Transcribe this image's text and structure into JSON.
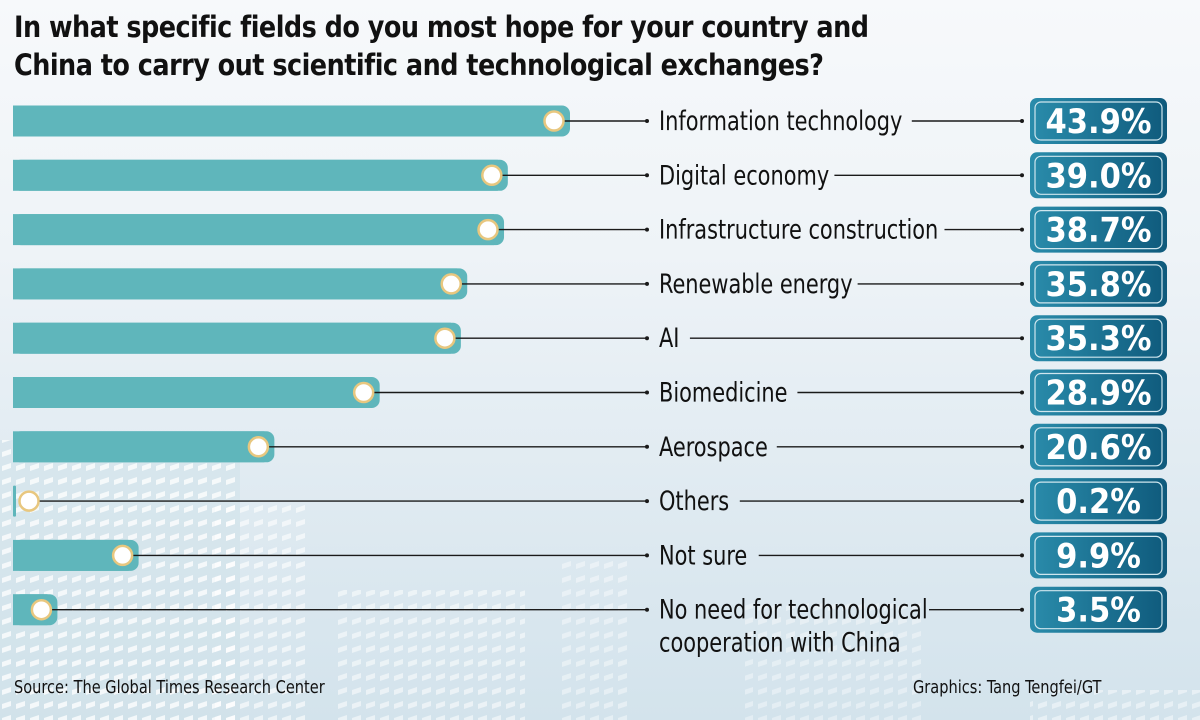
{
  "title_lines": [
    "In what specific fields do you most hope for your country and",
    "China to carry out scientific and technological exchanges?"
  ],
  "source": "Source: The Global Times Research Center",
  "credit": "Graphics: Tang Tengfei/GT",
  "colors": {
    "bar": "#5fb6bb",
    "knob_fill": "#ffffff",
    "knob_ring": "#e8c77f",
    "badge_dark": "#0f5a7c",
    "badge_light": "#2a8cab",
    "leader": "#1a1a1a"
  },
  "chart_data": {
    "type": "bar",
    "orientation": "horizontal",
    "title": "In what specific fields do you most hope for your country and China to carry out scientific and technological exchanges?",
    "xlabel": "",
    "ylabel": "",
    "unit": "%",
    "xlim": [
      0,
      43.9
    ],
    "grid": false,
    "categories": [
      "Information technology",
      "Digital economy",
      "Infrastructure construction",
      "Renewable energy",
      "AI",
      "Biomedicine",
      "Aerospace",
      "Others",
      "Not sure",
      "No need for technological cooperation with China"
    ],
    "label_lines": [
      [
        "Information technology"
      ],
      [
        "Digital economy"
      ],
      [
        "Infrastructure construction"
      ],
      [
        "Renewable energy"
      ],
      [
        "AI"
      ],
      [
        "Biomedicine"
      ],
      [
        "Aerospace"
      ],
      [
        "Others"
      ],
      [
        "Not sure"
      ],
      [
        "No need for technological",
        "cooperation with China"
      ]
    ],
    "values": [
      43.9,
      39.0,
      38.7,
      35.8,
      35.3,
      28.9,
      20.6,
      0.2,
      9.9,
      3.5
    ],
    "value_labels": [
      "43.9%",
      "39.0%",
      "38.7%",
      "35.8%",
      "35.3%",
      "28.9%",
      "20.6%",
      "0.2%",
      "9.9%",
      "3.5%"
    ]
  }
}
